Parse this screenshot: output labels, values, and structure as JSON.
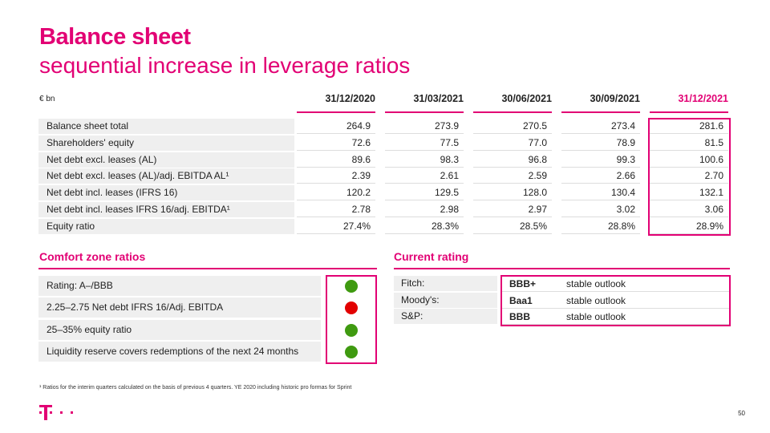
{
  "title": "Balance sheet",
  "subtitle": "sequential increase in leverage ratios",
  "table": {
    "unit": "€ bn",
    "columns": [
      "31/12/2020",
      "31/03/2021",
      "30/06/2021",
      "30/09/2021",
      "31/12/2021"
    ],
    "highlight_color": "#e20074",
    "rows": [
      {
        "label": "Balance sheet total",
        "values": [
          "264.9",
          "273.9",
          "270.5",
          "273.4",
          "281.6"
        ]
      },
      {
        "label": "Shareholders' equity",
        "values": [
          "72.6",
          "77.5",
          "77.0",
          "78.9",
          "81.5"
        ]
      },
      {
        "label": "Net debt excl. leases (AL)",
        "values": [
          "89.6",
          "98.3",
          "96.8",
          "99.3",
          "100.6"
        ]
      },
      {
        "label": "Net debt excl. leases (AL)/adj. EBITDA AL¹",
        "values": [
          "2.39",
          "2.61",
          "2.59",
          "2.66",
          "2.70"
        ]
      },
      {
        "label": "Net debt incl. leases (IFRS 16)",
        "values": [
          "120.2",
          "129.5",
          "128.0",
          "130.4",
          "132.1"
        ]
      },
      {
        "label": "Net debt incl. leases IFRS 16/adj. EBITDA¹",
        "values": [
          "2.78",
          "2.98",
          "2.97",
          "3.02",
          "3.06"
        ]
      },
      {
        "label": "Equity ratio",
        "values": [
          "27.4%",
          "28.3%",
          "28.5%",
          "28.8%",
          "28.9%"
        ]
      }
    ]
  },
  "comfort": {
    "title": "Comfort zone ratios",
    "items": [
      {
        "label": "Rating: A–/BBB",
        "status": "green",
        "color": "#3f9a10"
      },
      {
        "label": "2.25–2.75 Net debt IFRS 16/Adj. EBITDA",
        "status": "red",
        "color": "#e20000"
      },
      {
        "label": "25–35% equity ratio",
        "status": "green",
        "color": "#3f9a10"
      },
      {
        "label": "Liquidity reserve covers redemptions of the next 24 months",
        "status": "green",
        "color": "#3f9a10"
      }
    ]
  },
  "rating": {
    "title": "Current rating",
    "items": [
      {
        "agency": "Fitch:",
        "rating": "BBB+",
        "outlook": "stable outlook"
      },
      {
        "agency": "Moody's:",
        "rating": "Baa1",
        "outlook": "stable outlook"
      },
      {
        "agency": "S&P:",
        "rating": "BBB",
        "outlook": "stable outlook"
      }
    ]
  },
  "footnote": "¹ Ratios for the interim quarters calculated on the basis of previous 4 quarters. YE 2020 including historic pro formas for Sprint",
  "logo": "T · ·",
  "page_number": "50"
}
